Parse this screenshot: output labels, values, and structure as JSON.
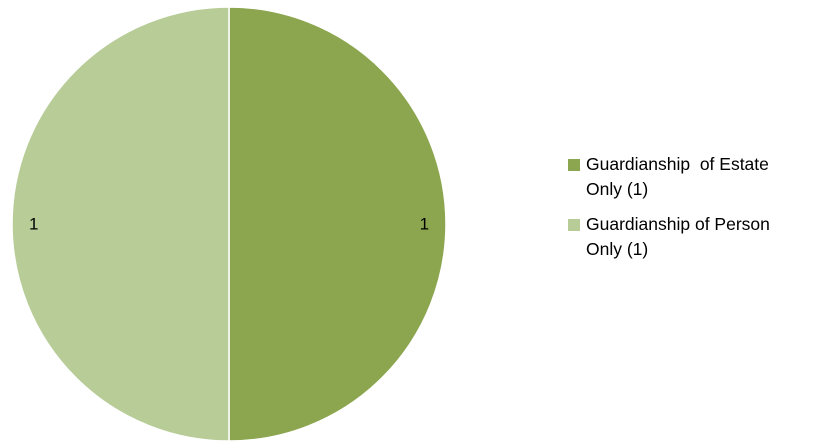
{
  "chart_data": {
    "type": "pie",
    "title": "",
    "slices": [
      {
        "label": "Guardianship  of Estate Only (1)",
        "value": 1,
        "data_label": "1",
        "color": "#8BA64E"
      },
      {
        "label": "Guardianship of Person Only (1)",
        "value": 1,
        "data_label": "1",
        "color": "#B7CC97"
      }
    ],
    "legend_position": "right",
    "slice_border_color": "#FFFFFF"
  },
  "legend": {
    "items": [
      {
        "line1": "Guardianship  of Estate",
        "line2": "Only (1)",
        "color": "#8BA64E"
      },
      {
        "line1": "Guardianship of Person",
        "line2": "Only (1)",
        "color": "#B7CC97"
      }
    ]
  }
}
